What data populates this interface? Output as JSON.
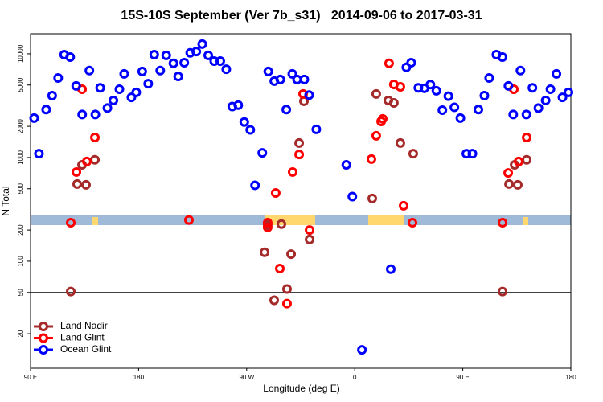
{
  "chart_data": {
    "type": "scatter",
    "title": "15S-10S September (Ver 7b_s31)   2014-09-06 to 2017-03-31",
    "xlabel": "Longitude (deg E)",
    "ylabel": "N Total",
    "xlim": [
      90,
      540
    ],
    "xticks": [
      {
        "value": 90,
        "label": "90 E"
      },
      {
        "value": 180,
        "label": "180"
      },
      {
        "value": 270,
        "label": "90 W"
      },
      {
        "value": 360,
        "label": "0"
      },
      {
        "value": 450,
        "label": "90 E"
      },
      {
        "value": 540,
        "label": "180"
      }
    ],
    "ylim": [
      9.3,
      15600
    ],
    "yticks": [
      20,
      50,
      100,
      200,
      500,
      1000,
      2000,
      5000,
      10000
    ],
    "log_y": true,
    "hline": 50,
    "legend": "lower left",
    "series": [
      {
        "name": "Land Nadir",
        "color": "#a52a2a",
        "x": [
          123.5,
          128.8,
          132.9,
          136.2,
          143.6,
          284.9,
          287.5,
          292.9,
          298.9,
          303.6,
          307.0,
          313.7,
          317.7,
          322.4,
          374.6,
          377.9,
          388.0,
          392.6,
          398.0,
          408.7,
          483.1,
          488.5,
          493.2,
          495.8,
          503.2
        ],
        "values": [
          51,
          555,
          850,
          545,
          950,
          122,
          223,
          42,
          228,
          54,
          117,
          1380,
          3490,
          162,
          403,
          4100,
          3550,
          3360,
          1380,
          1090,
          51,
          555,
          850,
          545,
          950
        ]
      },
      {
        "name": "Land Glint",
        "color": "#ff0000",
        "x": [
          123.5,
          128.2,
          132.9,
          136.9,
          143.6,
          221.9,
          287.5,
          287.5,
          294.2,
          297.6,
          303.6,
          308.3,
          313.7,
          317.0,
          322.4,
          373.9,
          377.9,
          382.0,
          383.3,
          388.6,
          392.6,
          398.0,
          400.7,
          408.1,
          483.1,
          487.8,
          492.5,
          496.5,
          503.2
        ],
        "values": [
          235,
          725,
          4550,
          915,
          1560,
          250,
          235,
          212,
          455,
          85,
          39,
          725,
          1070,
          4100,
          200,
          965,
          1620,
          2230,
          2360,
          8100,
          5070,
          4800,
          343,
          235,
          235,
          710,
          4550,
          915,
          1560
        ]
      },
      {
        "name": "Ocean Glint",
        "color": "#0000ff",
        "x": [
          93,
          97,
          103,
          108,
          113,
          118,
          123,
          128,
          133,
          139,
          144,
          148,
          154,
          159,
          164,
          168,
          174,
          178,
          183,
          188,
          193,
          198,
          203,
          209,
          213,
          218,
          223,
          228,
          233,
          238,
          243,
          248,
          253,
          258,
          263,
          268,
          273,
          277,
          283,
          288,
          293,
          298,
          303,
          308,
          312,
          318,
          322,
          328,
          353,
          358,
          366,
          390,
          403,
          407,
          413,
          418,
          423,
          428,
          433,
          438,
          443,
          448,
          453,
          458,
          463,
          468,
          472,
          478,
          483,
          488,
          492,
          498,
          503,
          508,
          513,
          519,
          523,
          528,
          533,
          538
        ],
        "values": [
          2400,
          1090,
          2900,
          3950,
          5850,
          9800,
          9300,
          4900,
          2600,
          6900,
          2600,
          4700,
          3000,
          3550,
          4550,
          6400,
          3800,
          4250,
          6750,
          5150,
          9800,
          6900,
          9650,
          8100,
          6050,
          8200,
          10200,
          10500,
          12400,
          9650,
          8500,
          8500,
          7100,
          3100,
          3200,
          2200,
          1850,
          540,
          1110,
          6750,
          5450,
          5650,
          2900,
          6400,
          5650,
          5650,
          4000,
          1870,
          850,
          420,
          14,
          84,
          7400,
          8200,
          4700,
          4650,
          5050,
          4400,
          2860,
          3900,
          3050,
          2400,
          1090,
          1090,
          2900,
          3950,
          5850,
          9800,
          9300,
          4900,
          2600,
          6900,
          2600,
          4700,
          3000,
          3550,
          4550,
          6400,
          3800,
          4250
        ]
      }
    ]
  }
}
